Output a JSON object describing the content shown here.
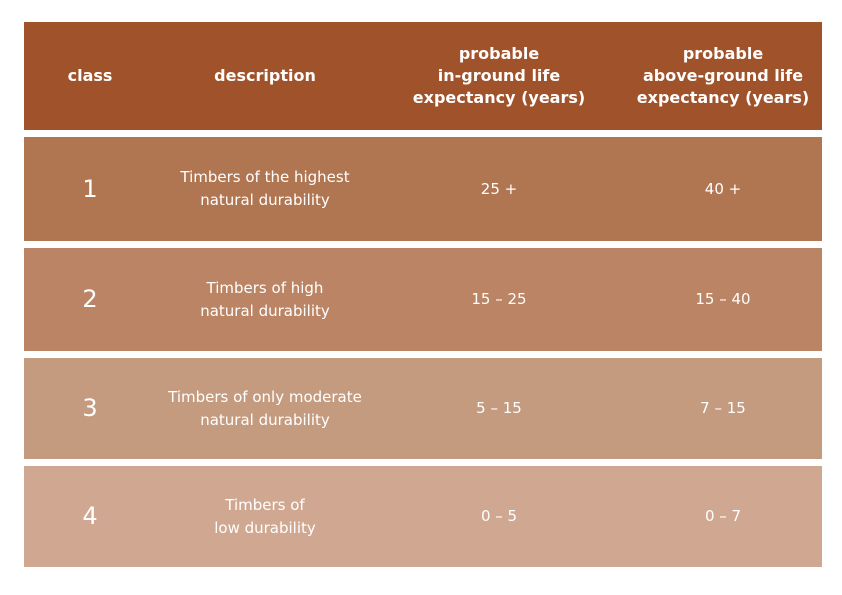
{
  "table": {
    "header": [
      [
        "class"
      ],
      [
        "description"
      ],
      [
        "probable",
        "in-ground life",
        "expectancy (years)"
      ],
      [
        "probable",
        "above-ground life",
        "expectancy (years)"
      ]
    ],
    "rows": [
      [
        1,
        [
          "Timbers of the highest",
          "natural durability"
        ],
        "25 +",
        "40 +"
      ],
      [
        2,
        [
          "Timbers of high",
          "natural durability"
        ],
        "15 – 25",
        "15 – 40"
      ],
      [
        3,
        [
          "Timbers of only moderate",
          "natural durability"
        ],
        "5 – 15",
        "7 – 15"
      ],
      [
        4,
        [
          "Timbers of",
          "low durability"
        ],
        "0 – 5",
        "0 – 7"
      ]
    ]
  }
}
